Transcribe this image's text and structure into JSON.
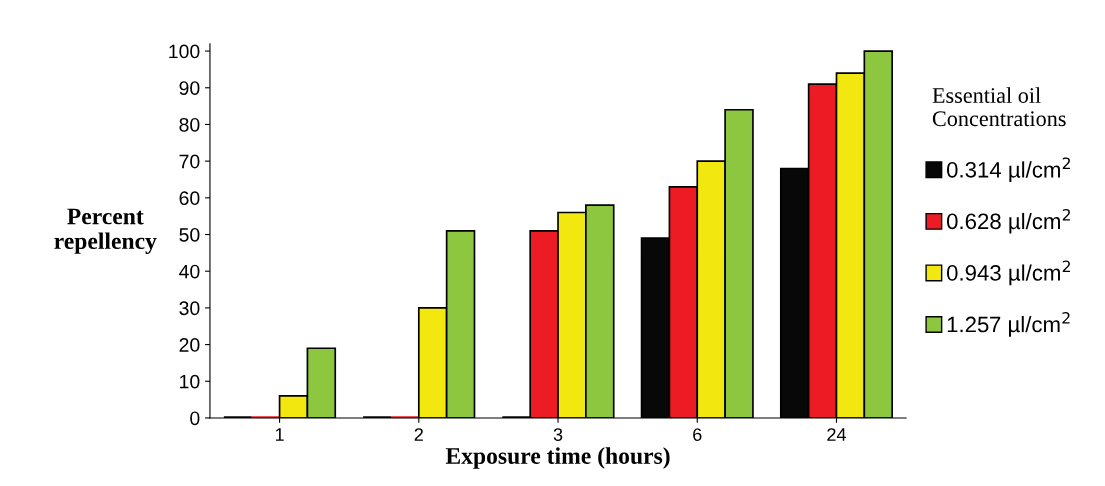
{
  "chart_data": {
    "type": "bar",
    "xlabel": "Exposure time (hours)",
    "ylabel": "Percent\nrepellency",
    "legend_title": "Essential oil\nConcentrations",
    "legend": "right",
    "grid": false,
    "categories": [
      "1",
      "2",
      "3",
      "6",
      "24"
    ],
    "ylim": [
      0,
      102
    ],
    "yticks": [
      0,
      10,
      20,
      30,
      40,
      50,
      60,
      70,
      80,
      90,
      100
    ],
    "series": [
      {
        "name": "0.314 µl/cm$^{2}$",
        "color": "#080808",
        "values": [
          0,
          0,
          0,
          49,
          68
        ]
      },
      {
        "name": "0.628 µl/cm$^{2}$",
        "color": "#ed1c24",
        "values": [
          0,
          0,
          51,
          63,
          91
        ]
      },
      {
        "name": "0.943 µl/cm$^{2}$",
        "color": "#f2e70f",
        "values": [
          6,
          30,
          56,
          70,
          94
        ]
      },
      {
        "name": "1.257 µl/cm$^{2}$",
        "color": "#8dc63f",
        "values": [
          19,
          51,
          58,
          84,
          100
        ]
      }
    ]
  }
}
